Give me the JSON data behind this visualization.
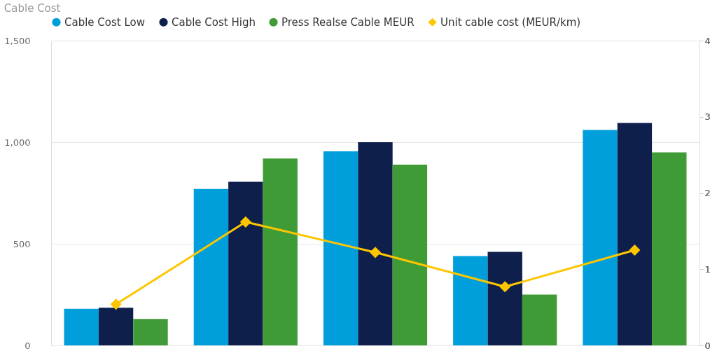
{
  "chart_data": {
    "type": "bar",
    "title": "Cable Cost",
    "categories": [
      null,
      null,
      null,
      null,
      null
    ],
    "series": [
      {
        "name": "Cable Cost Low",
        "color": "#009fdb",
        "values": [
          180,
          770,
          955,
          440,
          1060
        ]
      },
      {
        "name": "Cable Cost High",
        "color": "#0f1f4b",
        "values": [
          185,
          805,
          1000,
          460,
          1095
        ]
      },
      {
        "name": "Press Realse Cable MEUR",
        "color": "#3f9b35",
        "values": [
          130,
          920,
          890,
          250,
          950
        ]
      },
      {
        "name": "Unit cable cost (MEUR/km)",
        "color": "#fec600",
        "type": "line",
        "axis": "y2",
        "marker": "diamond",
        "values": [
          0.54,
          1.62,
          1.22,
          0.77,
          1.25
        ]
      }
    ],
    "ylim": [
      0,
      1500
    ],
    "yticks": [
      0,
      {
        "value": 500,
        "label": "500"
      },
      {
        "value": 1000,
        "label": "1,000"
      },
      {
        "value": 1500,
        "label": "1,500"
      }
    ],
    "y2lim": [
      0,
      4
    ],
    "y2ticks": [
      0,
      1,
      2,
      3,
      4
    ],
    "grid": "y",
    "legend": "top left",
    "marker": "circle"
  }
}
